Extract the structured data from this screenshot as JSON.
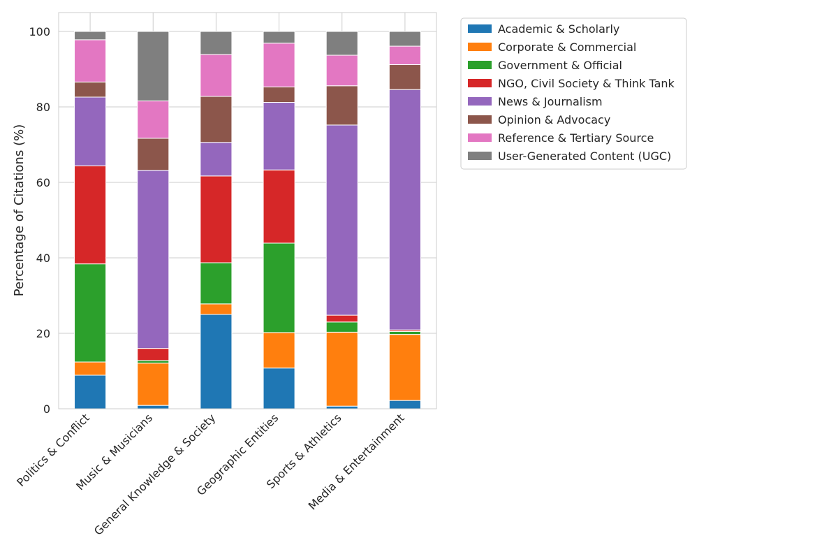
{
  "chart_data": {
    "type": "bar",
    "stacked": true,
    "title": "",
    "xlabel": "",
    "ylabel": "Percentage of Citations (%)",
    "ylim": [
      0,
      105
    ],
    "yticks": [
      0,
      20,
      40,
      60,
      80,
      100
    ],
    "grid": true,
    "legend_position": "outside-right",
    "categories": [
      "Politics & Conflict",
      "Music & Musicians",
      "General Knowledge & Society",
      "Geographic Entities",
      "Sports & Athletics",
      "Media & Entertainment"
    ],
    "series": [
      {
        "name": "Academic & Scholarly",
        "color": "#1f77b4",
        "values": [
          8.9,
          0.9,
          25.0,
          10.8,
          0.7,
          2.2
        ]
      },
      {
        "name": "Corporate & Commercial",
        "color": "#ff7f0e",
        "values": [
          3.5,
          11.2,
          2.8,
          9.4,
          19.6,
          17.5
        ]
      },
      {
        "name": "Government & Official",
        "color": "#2ca02c",
        "values": [
          26.0,
          0.7,
          10.9,
          23.7,
          2.7,
          0.8
        ]
      },
      {
        "name": "NGO, Civil Society & Think Tank",
        "color": "#d62728",
        "values": [
          26.0,
          3.2,
          23.0,
          19.4,
          1.8,
          0.4
        ]
      },
      {
        "name": "News & Journalism",
        "color": "#9467bd",
        "values": [
          18.2,
          47.2,
          8.9,
          17.9,
          50.4,
          63.7
        ]
      },
      {
        "name": "Opinion & Advocacy",
        "color": "#8c564b",
        "values": [
          4.0,
          8.5,
          12.2,
          4.1,
          10.4,
          6.6
        ]
      },
      {
        "name": "Reference & Tertiary Source",
        "color": "#e377c2",
        "values": [
          11.2,
          9.9,
          11.1,
          11.6,
          8.1,
          4.9
        ]
      },
      {
        "name": "User-Generated Content (UGC)",
        "color": "#7f7f7f",
        "values": [
          2.2,
          18.4,
          6.1,
          3.1,
          6.3,
          3.9
        ]
      }
    ]
  }
}
